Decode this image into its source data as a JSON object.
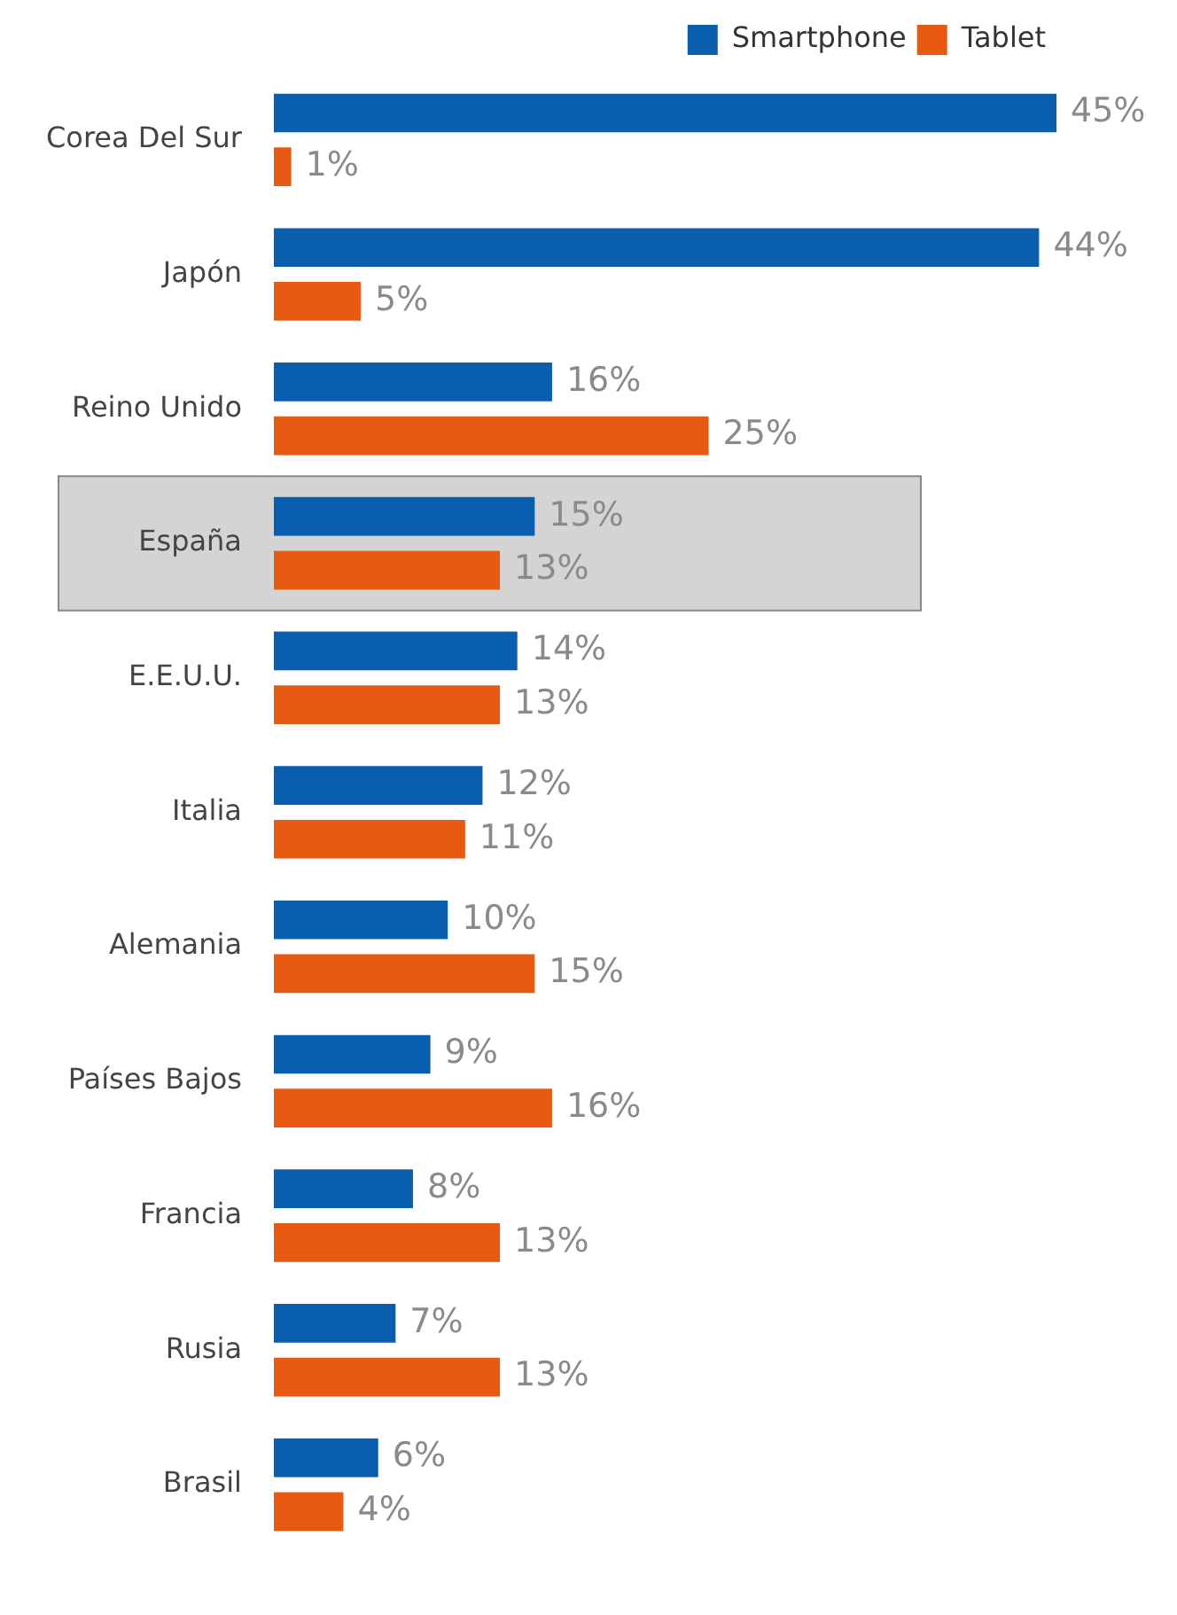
{
  "chart_data": {
    "type": "bar",
    "orientation": "horizontal",
    "legend": "top right",
    "grid": false,
    "categories": [
      "Corea Del Sur",
      "Japón",
      "Reino Unido",
      "España",
      "E.E.U.U.",
      "Italia",
      "Alemania",
      "Países Bajos",
      "Francia",
      "Rusia",
      "Brasil"
    ],
    "series": [
      {
        "name": "Smartphone",
        "color": "#0a5eb0",
        "values": [
          45,
          44,
          16,
          15,
          14,
          12,
          10,
          9,
          8,
          7,
          6
        ],
        "value_labels": [
          "45%",
          "44%",
          "16%",
          "15%",
          "14%",
          "12%",
          "10%",
          "9%",
          "8%",
          "7%",
          "6%"
        ]
      },
      {
        "name": "Tablet",
        "color": "#e85a12",
        "values": [
          1,
          5,
          25,
          13,
          13,
          11,
          15,
          16,
          13,
          13,
          4
        ],
        "value_labels": [
          "1%",
          "5%",
          "25%",
          "13%",
          "13%",
          "11%",
          "15%",
          "16%",
          "13%",
          "13%",
          "4%"
        ]
      }
    ],
    "bands": [
      {
        "axis": "y",
        "from": "España",
        "to": "España",
        "color": "#d4d4d4"
      }
    ]
  }
}
